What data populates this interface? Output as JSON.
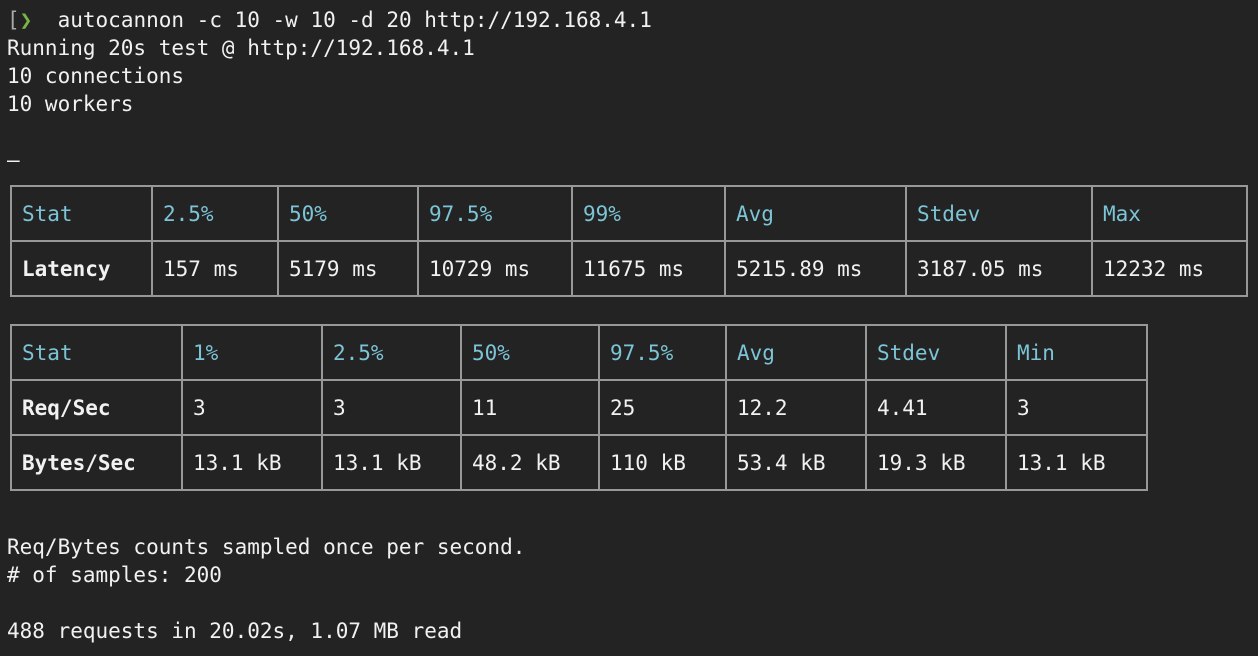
{
  "colors": {
    "background": "#232323",
    "text": "#f1f1f1",
    "accent_cyan": "#7cc4d6",
    "prompt_green": "#77b645",
    "prompt_gray": "#a9a9a9",
    "table_border": "#989898"
  },
  "terminal": {
    "prompt": {
      "bracket": "[",
      "chevron": "❯"
    },
    "command": "autocannon -c 10 -w 10 -d 20 http://192.168.4.1",
    "lines": {
      "running": "Running 20s test @ http://192.168.4.1",
      "connections": "10 connections",
      "workers": "10 workers",
      "spinner_dash": "–"
    },
    "footer": {
      "sampled_note": "Req/Bytes counts sampled once per second.",
      "samples": "# of samples: 200",
      "summary": "488 requests in 20.02s, 1.07 MB read"
    }
  },
  "latency_table": {
    "headers": [
      "Stat",
      "2.5%",
      "50%",
      "97.5%",
      "99%",
      "Avg",
      "Stdev",
      "Max"
    ],
    "rows": [
      [
        "Latency",
        "157 ms",
        "5179 ms",
        "10729 ms",
        "11675 ms",
        "5215.89 ms",
        "3187.05 ms",
        "12232 ms"
      ]
    ]
  },
  "rates_table": {
    "headers": [
      "Stat",
      "1%",
      "2.5%",
      "50%",
      "97.5%",
      "Avg",
      "Stdev",
      "Min"
    ],
    "rows": [
      [
        "Req/Sec",
        "3",
        "3",
        "11",
        "25",
        "12.2",
        "4.41",
        "3"
      ],
      [
        "Bytes/Sec",
        "13.1 kB",
        "13.1 kB",
        "48.2 kB",
        "110 kB",
        "53.4 kB",
        "19.3 kB",
        "13.1 kB"
      ]
    ]
  }
}
